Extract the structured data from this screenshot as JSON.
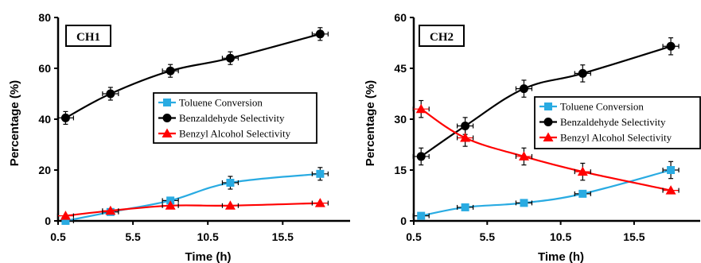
{
  "chart_data": [
    {
      "type": "line",
      "panel_label": "CH1",
      "xlabel": "Time (h)",
      "ylabel": "Percentage (%)",
      "xlim": [
        0.5,
        20
      ],
      "ylim": [
        0,
        80
      ],
      "x_ticks": [
        "0.5",
        "5.5",
        "10.5",
        "15.5"
      ],
      "y_ticks": [
        "0",
        "20",
        "40",
        "60",
        "80"
      ],
      "grid": false,
      "legend_position": "center-right",
      "error_bars": true,
      "series": [
        {
          "name": "Toluene Conversion",
          "color": "#29abe2",
          "marker": "square",
          "x": [
            1,
            4,
            8,
            12,
            18
          ],
          "y": [
            0,
            3.5,
            8,
            15,
            18.5
          ]
        },
        {
          "name": "Benzaldehyde Selectivity",
          "color": "#000000",
          "marker": "circle",
          "x": [
            1,
            4,
            8,
            12,
            18
          ],
          "y": [
            40.5,
            50,
            59,
            64,
            73.5
          ]
        },
        {
          "name": "Benzyl Alcohol Selectivity",
          "color": "#ff0000",
          "marker": "triangle",
          "x": [
            1,
            4,
            8,
            12,
            18
          ],
          "y": [
            2,
            4,
            6,
            6,
            7
          ]
        }
      ]
    },
    {
      "type": "line",
      "panel_label": "CH2",
      "xlabel": "Time (h)",
      "ylabel": "Percentage (%)",
      "xlim": [
        0.5,
        20
      ],
      "ylim": [
        0,
        60
      ],
      "x_ticks": [
        "0.5",
        "5.5",
        "10.5",
        "15.5"
      ],
      "y_ticks": [
        "0",
        "15",
        "30",
        "45",
        "60"
      ],
      "grid": false,
      "legend_position": "right",
      "error_bars": true,
      "series": [
        {
          "name": "Toluene Conversion",
          "color": "#29abe2",
          "marker": "square",
          "x": [
            1,
            4,
            8,
            12,
            18
          ],
          "y": [
            1.5,
            4,
            5.3,
            8,
            15
          ]
        },
        {
          "name": "Benzaldehyde Selectivity",
          "color": "#000000",
          "marker": "circle",
          "x": [
            1,
            4,
            8,
            12,
            18
          ],
          "y": [
            19,
            28,
            39,
            43.5,
            51.5
          ]
        },
        {
          "name": "Benzyl Alcohol Selectivity",
          "color": "#ff0000",
          "marker": "triangle",
          "x": [
            1,
            4,
            8,
            12,
            18
          ],
          "y": [
            33,
            24.5,
            19,
            14.5,
            9
          ]
        }
      ]
    }
  ]
}
